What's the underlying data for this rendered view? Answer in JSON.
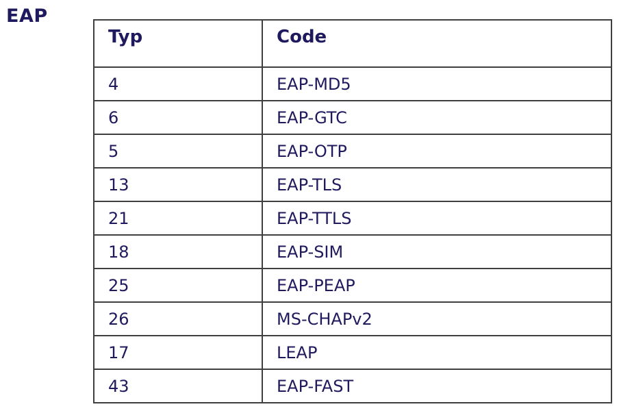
{
  "page_label": "EAP",
  "table": {
    "headers": {
      "typ": "Typ",
      "code": "Code"
    },
    "rows": [
      {
        "typ": "4",
        "code": "EAP-MD5"
      },
      {
        "typ": "6",
        "code": "EAP-GTC"
      },
      {
        "typ": "5",
        "code": "EAP-OTP"
      },
      {
        "typ": "13",
        "code": "EAP-TLS"
      },
      {
        "typ": "21",
        "code": "EAP-TTLS"
      },
      {
        "typ": "18",
        "code": "EAP-SIM"
      },
      {
        "typ": "25",
        "code": "EAP-PEAP"
      },
      {
        "typ": "26",
        "code": "MS-CHAPv2"
      },
      {
        "typ": "17",
        "code": "LEAP"
      },
      {
        "typ": "43",
        "code": "EAP-FAST"
      }
    ]
  },
  "colors": {
    "text": "#1f1a5e",
    "border": "#3f3f3f",
    "background": "#ffffff"
  }
}
